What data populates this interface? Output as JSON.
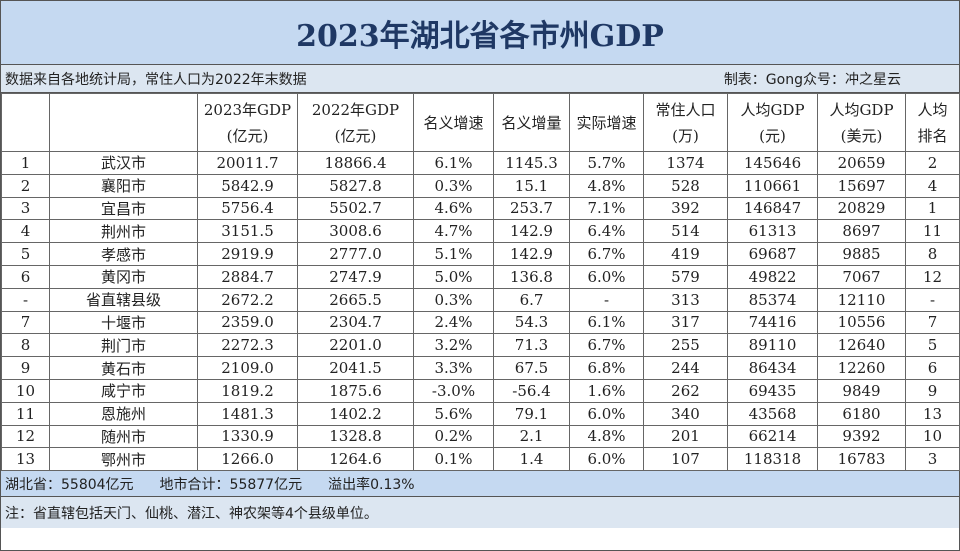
{
  "title": "2023年湖北省各市州GDP",
  "source": "数据来自各地统计局，常住人口为2022年末数据",
  "credit": "制表：Gong众号：冲之星云",
  "columns": [
    [
      "2023年GDP",
      "(亿元)"
    ],
    [
      "2022年GDP",
      "(亿元)"
    ],
    [
      "名义增速"
    ],
    [
      "名义增量"
    ],
    [
      "实际增速"
    ],
    [
      "常住人口",
      "(万)"
    ],
    [
      "人均GDP",
      "(元)"
    ],
    [
      "人均GDP",
      "(美元)"
    ],
    [
      "人均",
      "排名"
    ]
  ],
  "rows": [
    [
      "1",
      "武汉市",
      "20011.7",
      "18866.4",
      "6.1%",
      "1145.3",
      "5.7%",
      "1374",
      "145646",
      "20659",
      "2"
    ],
    [
      "2",
      "襄阳市",
      "5842.9",
      "5827.8",
      "0.3%",
      "15.1",
      "4.8%",
      "528",
      "110661",
      "15697",
      "4"
    ],
    [
      "3",
      "宜昌市",
      "5756.4",
      "5502.7",
      "4.6%",
      "253.7",
      "7.1%",
      "392",
      "146847",
      "20829",
      "1"
    ],
    [
      "4",
      "荆州市",
      "3151.5",
      "3008.6",
      "4.7%",
      "142.9",
      "6.4%",
      "514",
      "61313",
      "8697",
      "11"
    ],
    [
      "5",
      "孝感市",
      "2919.9",
      "2777.0",
      "5.1%",
      "142.9",
      "6.7%",
      "419",
      "69687",
      "9885",
      "8"
    ],
    [
      "6",
      "黄冈市",
      "2884.7",
      "2747.9",
      "5.0%",
      "136.8",
      "6.0%",
      "579",
      "49822",
      "7067",
      "12"
    ],
    [
      "-",
      "省直辖县级",
      "2672.2",
      "2665.5",
      "0.3%",
      "6.7",
      "-",
      "313",
      "85374",
      "12110",
      "-"
    ],
    [
      "7",
      "十堰市",
      "2359.0",
      "2304.7",
      "2.4%",
      "54.3",
      "6.1%",
      "317",
      "74416",
      "10556",
      "7"
    ],
    [
      "8",
      "荆门市",
      "2272.3",
      "2201.0",
      "3.2%",
      "71.3",
      "6.7%",
      "255",
      "89110",
      "12640",
      "5"
    ],
    [
      "9",
      "黄石市",
      "2109.0",
      "2041.5",
      "3.3%",
      "67.5",
      "6.8%",
      "244",
      "86434",
      "12260",
      "6"
    ],
    [
      "10",
      "咸宁市",
      "1819.2",
      "1875.6",
      "-3.0%",
      "-56.4",
      "1.6%",
      "262",
      "69435",
      "9849",
      "9"
    ],
    [
      "11",
      "恩施州",
      "1481.3",
      "1402.2",
      "5.6%",
      "79.1",
      "6.0%",
      "340",
      "43568",
      "6180",
      "13"
    ],
    [
      "12",
      "随州市",
      "1330.9",
      "1328.8",
      "0.2%",
      "2.1",
      "4.8%",
      "201",
      "66214",
      "9392",
      "10"
    ],
    [
      "13",
      "鄂州市",
      "1266.0",
      "1264.6",
      "0.1%",
      "1.4",
      "6.0%",
      "107",
      "118318",
      "16783",
      "3"
    ]
  ],
  "summary": [
    "湖北省：55804亿元",
    "地市合计：55877亿元",
    "溢出率0.13%"
  ],
  "note": "注：省直辖包括天门、仙桃、潜江、神农架等4个县级单位。"
}
